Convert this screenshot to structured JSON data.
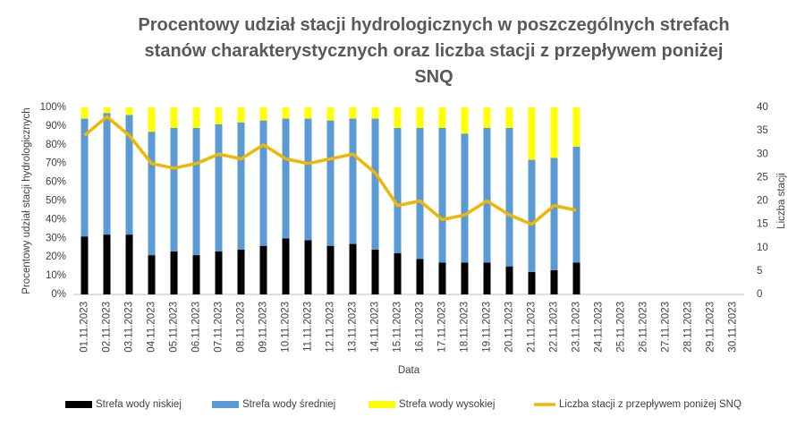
{
  "chart_data": {
    "type": "stacked-bar-line",
    "title": "Procentowy udział stacji hydrologicznych w poszczególnych strefach stanów charakterystycznych oraz liczba stacji z przepływem poniżej SNQ",
    "x_label": "Data",
    "y_label": "Procentowy udział stacji hydrologicznych",
    "y2_label": "Liczba stacji",
    "categories": [
      "01.11.2023",
      "02.11.2023",
      "03.11.2023",
      "04.11.2023",
      "05.11.2023",
      "06.11.2023",
      "07.11.2023",
      "08.11.2023",
      "09.11.2023",
      "10.11.2023",
      "11.11.2023",
      "12.11.2023",
      "13.11.2023",
      "14.11.2023",
      "15.11.2023",
      "16.11.2023",
      "17.11.2023",
      "18.11.2023",
      "19.11.2023",
      "20.11.2023",
      "21.11.2023",
      "22.11.2023",
      "23.11.2023",
      "24.11.2023",
      "25.11.2023",
      "26.11.2023",
      "27.11.2023",
      "28.11.2023",
      "29.11.2023",
      "30.11.2023"
    ],
    "series": [
      {
        "name": "Strefa wody niskiej",
        "color": "#000000",
        "values": [
          31,
          32,
          32,
          21,
          23,
          21,
          23,
          24,
          26,
          30,
          29,
          26,
          27,
          24,
          22,
          19,
          17,
          17,
          17,
          15,
          12,
          13,
          17,
          null,
          null,
          null,
          null,
          null,
          null,
          null
        ]
      },
      {
        "name": "Strefa wody średniej",
        "color": "#5b9bd5",
        "values": [
          63,
          65,
          64,
          66,
          66,
          68,
          68,
          68,
          67,
          64,
          65,
          67,
          67,
          70,
          67,
          70,
          72,
          69,
          72,
          74,
          60,
          60,
          62,
          null,
          null,
          null,
          null,
          null,
          null,
          null
        ]
      },
      {
        "name": "Strefa wody wysokiej",
        "color": "#ffff00",
        "values": [
          6,
          3,
          4,
          13,
          11,
          11,
          9,
          8,
          7,
          6,
          6,
          7,
          6,
          6,
          11,
          11,
          11,
          14,
          11,
          11,
          28,
          27,
          21,
          null,
          null,
          null,
          null,
          null,
          null,
          null
        ]
      },
      {
        "name": "Liczba stacji z przepływem poniżej SNQ",
        "color": "#f2b600",
        "axis": "y2",
        "values": [
          34,
          38,
          34,
          28,
          27,
          28,
          30,
          29,
          32,
          29,
          28,
          29,
          30,
          26,
          19,
          20,
          16,
          17,
          20,
          17,
          15,
          19,
          18,
          null,
          null,
          null,
          null,
          null,
          null,
          null
        ]
      }
    ],
    "ylim": [
      0,
      100
    ],
    "yticks": [
      {
        "value": 0,
        "label": "0%"
      },
      {
        "value": 10,
        "label": "10%"
      },
      {
        "value": 20,
        "label": "20%"
      },
      {
        "value": 30,
        "label": "30%"
      },
      {
        "value": 40,
        "label": "40%"
      },
      {
        "value": 50,
        "label": "50%"
      },
      {
        "value": 60,
        "label": "60%"
      },
      {
        "value": 70,
        "label": "70%"
      },
      {
        "value": 80,
        "label": "80%"
      },
      {
        "value": 90,
        "label": "90%"
      },
      {
        "value": 100,
        "label": "100%"
      }
    ],
    "y2lim": [
      0,
      40
    ],
    "y2ticks": [
      0,
      5,
      10,
      15,
      20,
      25,
      30,
      35,
      40
    ],
    "grid": false,
    "legend": "bottom"
  }
}
